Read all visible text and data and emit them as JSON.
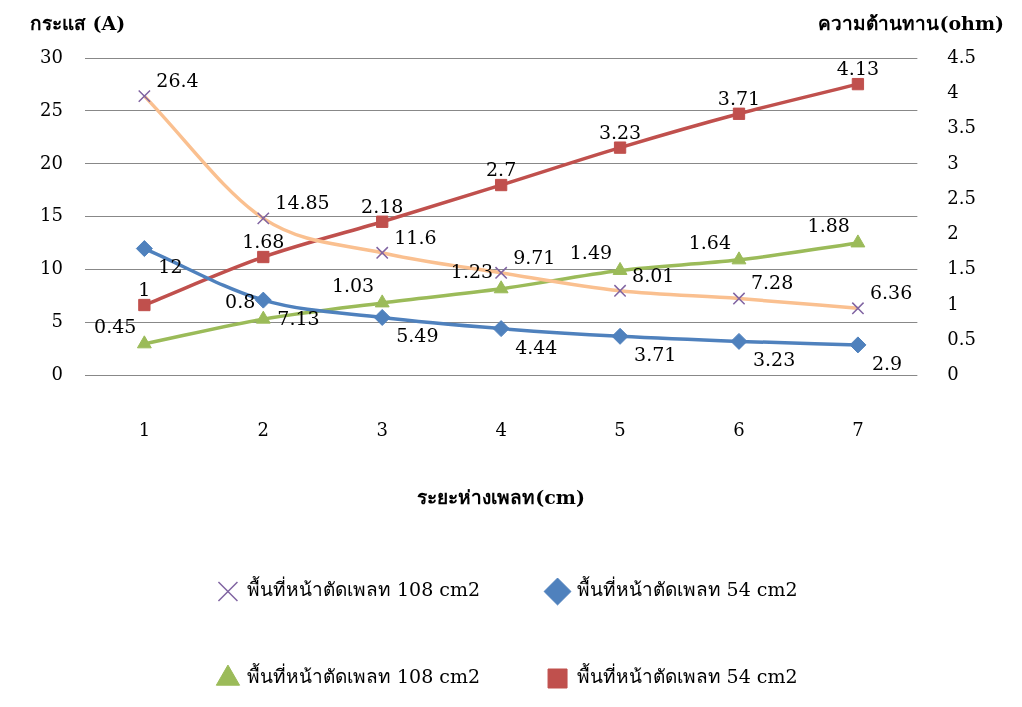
{
  "chart_data": {
    "type": "line",
    "xlabel": "ระยะห่างเพลท(cm)",
    "ylabel": "กระแส (A)",
    "y2label": "ความต้านทาน(ohm)",
    "categories": [
      "1",
      "2",
      "3",
      "4",
      "5",
      "6",
      "7"
    ],
    "series": [
      {
        "name": "พื้นที่หน้าตัดเพลท 108 cm2",
        "color": "#fac090",
        "marker": "cross",
        "values": [
          26.4,
          14.85,
          11.6,
          9.71,
          8.01,
          7.28,
          6.36
        ]
      },
      {
        "name": "พื้นที่หน้าตัดเพลท 54 cm2",
        "color": "#4f81bd",
        "marker": "diamond",
        "values": [
          12,
          7.13,
          5.49,
          4.44,
          3.71,
          3.23,
          2.9
        ]
      },
      {
        "name": "พื้นที่หน้าตัดเพลท 108 cm2",
        "color": "#9bbb59",
        "marker": "triangle",
        "axis": "y2",
        "values": [
          0.45,
          0.8,
          1.03,
          1.23,
          1.49,
          1.64,
          1.88
        ]
      },
      {
        "name": "พื้นที่หน้าตัดเพลท 54 cm2",
        "color": "#c0504d",
        "marker": "square",
        "axis": "y2",
        "values": [
          1,
          1.68,
          2.18,
          2.7,
          3.23,
          3.71,
          4.13
        ]
      }
    ],
    "ylim": [
      0,
      30
    ],
    "yticks": [
      0,
      5,
      10,
      15,
      20,
      25,
      30
    ],
    "y2lim": [
      0,
      4.5
    ],
    "y2ticks": [
      0,
      0.5,
      1,
      1.5,
      2,
      2.5,
      3,
      3.5,
      4,
      4.5
    ],
    "grid": "y",
    "legend": "bottom",
    "data_labels": true
  }
}
